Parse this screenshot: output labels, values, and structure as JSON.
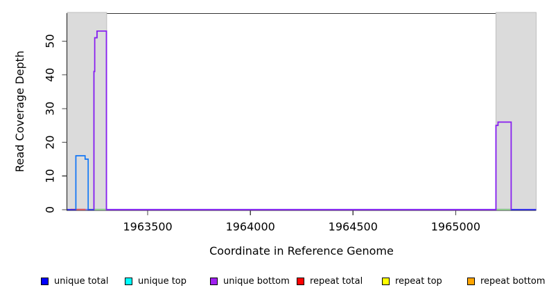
{
  "axes": {
    "x_label": "Coordinate in Reference Genome",
    "y_label": "Read Coverage Depth"
  },
  "chart_data": {
    "type": "line",
    "subtype": "step-coverage",
    "title": "",
    "xlabel": "Coordinate in Reference Genome",
    "ylabel": "Read Coverage Depth",
    "xlim": [
      1963108,
      1965392
    ],
    "ylim": [
      0,
      58.3
    ],
    "x_ticks": [
      1963500,
      1964000,
      1964500,
      1965000
    ],
    "y_ticks": [
      0,
      10,
      20,
      30,
      40,
      50
    ],
    "grid": false,
    "legend_position": "bottom",
    "repeat_region_color": "#DBDBDB",
    "repeat_region_border": "#BDBDBD",
    "repeat_regions": [
      {
        "from": 1963108,
        "to": 1963300
      },
      {
        "from": 1965196,
        "to": 1965392
      }
    ],
    "series": [
      {
        "name": "unique total",
        "color": "#0000FF",
        "full_domain": true,
        "points": [
          [
            1963150,
            16
          ],
          [
            1963195,
            15
          ],
          [
            1963210,
            0
          ],
          [
            1963238,
            41
          ],
          [
            1963242,
            51
          ],
          [
            1963253,
            53
          ],
          [
            1963299,
            0
          ],
          [
            1965196,
            25
          ],
          [
            1965206,
            26
          ],
          [
            1965270,
            0
          ]
        ]
      },
      {
        "name": "unique top",
        "color": "#00FFFF",
        "full_domain": false,
        "points": [
          [
            1963150,
            16
          ],
          [
            1963195,
            15
          ],
          [
            1963210,
            0
          ]
        ]
      },
      {
        "name": "unique bottom",
        "color": "#A020F0",
        "full_domain": false,
        "points": [
          [
            1963238,
            41
          ],
          [
            1963242,
            51
          ],
          [
            1963253,
            53
          ],
          [
            1963299,
            0
          ],
          [
            1965196,
            25
          ],
          [
            1965206,
            26
          ],
          [
            1965270,
            0
          ]
        ]
      },
      {
        "name": "repeat total",
        "color": "#FF0000",
        "full_domain": false,
        "points": [
          [
            1963124,
            0
          ],
          [
            1963197,
            0
          ]
        ]
      },
      {
        "name": "repeat top",
        "color": "#FFFF00",
        "full_domain": false,
        "points": []
      },
      {
        "name": "repeat bottom",
        "color": "#FFA500",
        "full_domain": false,
        "points": []
      }
    ],
    "zero_line_color": "#8A7CEE",
    "zero_line_overlaps": [
      {
        "color": "#E25858",
        "from": 1963124,
        "to": 1963197
      },
      {
        "color": "#8FD488",
        "from": 1963210,
        "to": 1963299
      },
      {
        "color": "#8FD488",
        "from": 1965196,
        "to": 1965270
      }
    ],
    "legend": [
      {
        "label": "unique total",
        "color": "#0000FF"
      },
      {
        "label": "unique top",
        "color": "#00FFFF"
      },
      {
        "label": "unique bottom",
        "color": "#A020F0"
      },
      {
        "label": "repeat total",
        "color": "#FF0000"
      },
      {
        "label": "repeat top",
        "color": "#FFFF00"
      },
      {
        "label": "repeat bottom",
        "color": "#FFA500"
      }
    ]
  }
}
